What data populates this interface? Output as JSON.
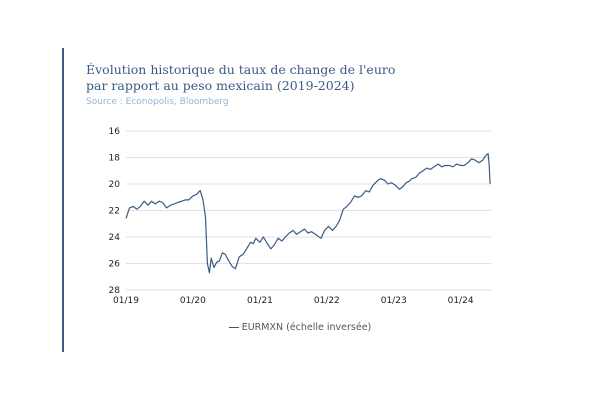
{
  "header": {
    "title_line1": "Évolution historique du taux de change de l'euro",
    "title_line2": "par rapport au peso mexicain (2019-2024)",
    "source": "Source : Econopolis, Bloomberg"
  },
  "colors": {
    "accent": "#3b5b84",
    "line": "#3b5b84",
    "source_text": "#93b5d3",
    "grid": "#d9d9d9"
  },
  "chart_data": {
    "type": "line",
    "title": "Évolution historique du taux de change de l'euro par rapport au peso mexicain (2019-2024)",
    "xlabel": "",
    "ylabel": "",
    "y_inverted": true,
    "ylim": [
      16,
      28
    ],
    "yticks": [
      16,
      18,
      20,
      22,
      24,
      26,
      28
    ],
    "xlim": [
      "2019-01-01",
      "2024-06-15"
    ],
    "xticks": [
      {
        "date": "2019-01-01",
        "label": "01/19"
      },
      {
        "date": "2020-01-01",
        "label": "01/20"
      },
      {
        "date": "2021-01-01",
        "label": "01/21"
      },
      {
        "date": "2022-01-01",
        "label": "01/22"
      },
      {
        "date": "2023-01-01",
        "label": "01/23"
      },
      {
        "date": "2024-01-01",
        "label": "01/24"
      }
    ],
    "grid": true,
    "legend_position": "bottom-center",
    "series": [
      {
        "name": "EURMXN (échelle inversée)",
        "x": [
          "2019-01-01",
          "2019-01-20",
          "2019-02-10",
          "2019-03-01",
          "2019-03-20",
          "2019-04-10",
          "2019-05-01",
          "2019-05-20",
          "2019-06-10",
          "2019-07-01",
          "2019-07-20",
          "2019-08-10",
          "2019-09-01",
          "2019-09-20",
          "2019-10-10",
          "2019-11-01",
          "2019-11-20",
          "2019-12-10",
          "2020-01-01",
          "2020-01-20",
          "2020-02-10",
          "2020-02-25",
          "2020-03-10",
          "2020-03-20",
          "2020-03-31",
          "2020-04-10",
          "2020-04-25",
          "2020-05-10",
          "2020-05-25",
          "2020-06-10",
          "2020-06-25",
          "2020-07-15",
          "2020-08-01",
          "2020-08-20",
          "2020-09-10",
          "2020-10-01",
          "2020-10-20",
          "2020-11-10",
          "2020-11-25",
          "2020-12-10",
          "2021-01-01",
          "2021-01-20",
          "2021-02-10",
          "2021-03-01",
          "2021-03-20",
          "2021-04-10",
          "2021-05-01",
          "2021-05-20",
          "2021-06-10",
          "2021-07-01",
          "2021-07-20",
          "2021-08-10",
          "2021-09-01",
          "2021-09-20",
          "2021-10-10",
          "2021-11-01",
          "2021-11-20",
          "2021-12-01",
          "2021-12-20",
          "2022-01-10",
          "2022-02-01",
          "2022-02-20",
          "2022-03-10",
          "2022-04-01",
          "2022-04-20",
          "2022-05-10",
          "2022-06-01",
          "2022-06-20",
          "2022-07-10",
          "2022-08-01",
          "2022-08-20",
          "2022-09-10",
          "2022-10-01",
          "2022-10-20",
          "2022-11-10",
          "2022-12-01",
          "2022-12-20",
          "2023-01-10",
          "2023-02-01",
          "2023-02-20",
          "2023-03-10",
          "2023-03-25",
          "2023-04-10",
          "2023-05-01",
          "2023-05-20",
          "2023-06-10",
          "2023-07-01",
          "2023-07-20",
          "2023-08-10",
          "2023-09-01",
          "2023-09-20",
          "2023-10-10",
          "2023-11-01",
          "2023-11-20",
          "2023-12-10",
          "2024-01-01",
          "2024-01-20",
          "2024-02-10",
          "2024-03-01",
          "2024-03-20",
          "2024-04-10",
          "2024-05-01",
          "2024-05-15",
          "2024-05-30",
          "2024-06-05",
          "2024-06-10"
        ],
        "values": [
          22.6,
          21.8,
          21.7,
          21.9,
          21.7,
          21.3,
          21.6,
          21.3,
          21.5,
          21.3,
          21.4,
          21.8,
          21.6,
          21.5,
          21.4,
          21.3,
          21.2,
          21.2,
          20.9,
          20.8,
          20.5,
          21.2,
          22.5,
          26.0,
          26.7,
          25.6,
          26.3,
          25.9,
          25.8,
          25.2,
          25.3,
          25.8,
          26.2,
          26.4,
          25.5,
          25.3,
          24.9,
          24.4,
          24.5,
          24.1,
          24.4,
          24.0,
          24.5,
          24.9,
          24.6,
          24.1,
          24.3,
          24.0,
          23.7,
          23.5,
          23.8,
          23.6,
          23.4,
          23.7,
          23.6,
          23.8,
          24.0,
          24.1,
          23.5,
          23.2,
          23.5,
          23.2,
          22.8,
          21.9,
          21.7,
          21.4,
          20.9,
          21.0,
          20.9,
          20.5,
          20.6,
          20.1,
          19.8,
          19.6,
          19.7,
          20.0,
          19.9,
          20.1,
          20.4,
          20.2,
          19.9,
          19.8,
          19.6,
          19.5,
          19.2,
          19.0,
          18.8,
          18.9,
          18.7,
          18.5,
          18.7,
          18.6,
          18.6,
          18.7,
          18.5,
          18.6,
          18.6,
          18.4,
          18.1,
          18.2,
          18.4,
          18.2,
          17.9,
          17.7,
          18.6,
          20.0
        ]
      }
    ]
  },
  "legend": {
    "label": "EURMXN (échelle inversée)"
  }
}
